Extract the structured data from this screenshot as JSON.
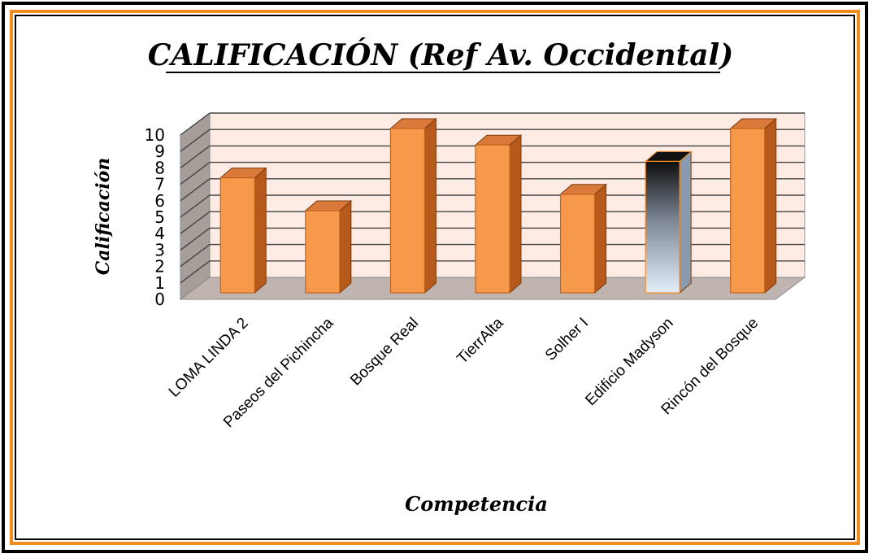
{
  "chart_data": {
    "type": "bar",
    "title": "CALIFICACIÓN (Ref Av. Occidental)",
    "xlabel": "Competencia",
    "ylabel": "Calificación",
    "ylim": [
      0,
      10
    ],
    "yticks": [
      "0",
      "1",
      "2",
      "3",
      "4",
      "5",
      "6",
      "7",
      "8",
      "9",
      "10"
    ],
    "categories": [
      "LOMA LINDA 2",
      "Paseos del Pichincha",
      "Bosque Real",
      "TierrAlta",
      "Solher I",
      "Edificio Madyson",
      "Rincón del Bosque"
    ],
    "values": [
      7,
      5,
      10,
      9,
      6,
      8,
      10
    ],
    "highlighted_category": "Edificio Madyson",
    "grid": true,
    "colors": {
      "bar_front": "#f7994a",
      "bar_side": "#b65a1c",
      "bar_top": "#d9793a",
      "wall": "#fdebe4",
      "floor": "#bfb4af",
      "side_wall": "#a79e99",
      "highlight_top": "#111111",
      "highlight_bottom": "#e4eefb"
    }
  }
}
